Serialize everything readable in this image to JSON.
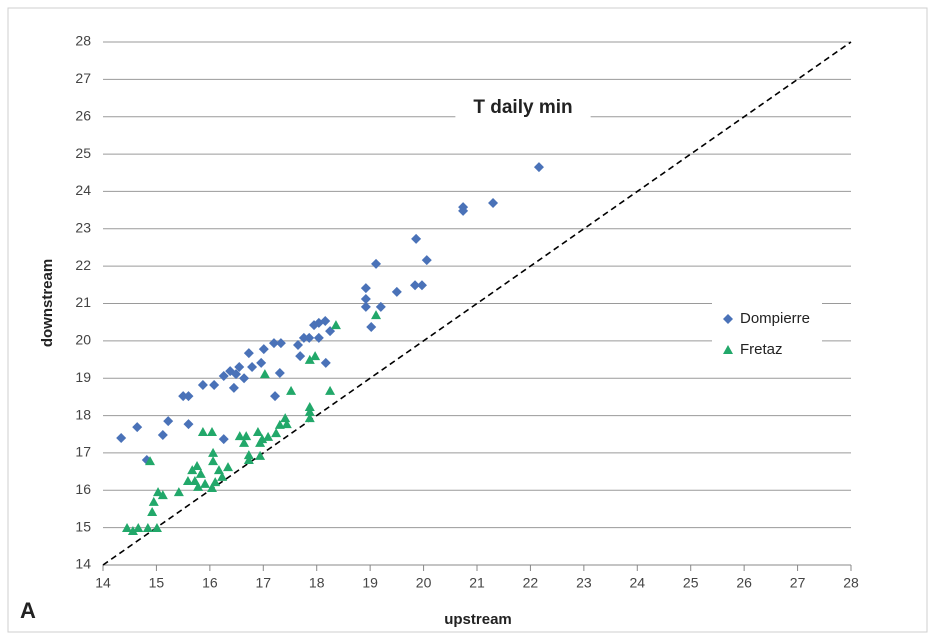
{
  "chart_data": {
    "type": "scatter",
    "title": "T daily min",
    "panel_label": "A",
    "x_label": "upstream",
    "y_label": "downstream",
    "xlim": [
      14,
      28
    ],
    "ylim": [
      14,
      28
    ],
    "xticks": [
      14,
      15,
      16,
      17,
      18,
      19,
      20,
      21,
      22,
      23,
      24,
      25,
      26,
      27,
      28
    ],
    "yticks": [
      14,
      15,
      16,
      17,
      18,
      19,
      20,
      21,
      22,
      23,
      24,
      25,
      26,
      27,
      28
    ],
    "grid": true,
    "identity_line": true,
    "legend": "right",
    "series": [
      {
        "name": "Dompierre",
        "color": "#4a72b8",
        "marker": "diamond",
        "x": [
          14.34,
          14.64,
          14.82,
          15.12,
          15.22,
          15.5,
          15.6,
          15.6,
          15.87,
          16.08,
          16.26,
          16.26,
          16.38,
          16.45,
          16.49,
          16.55,
          16.64,
          16.73,
          16.79,
          16.96,
          17.01,
          17.2,
          17.22,
          17.31,
          17.33,
          17.65,
          17.69,
          17.76,
          17.86,
          17.95,
          18.04,
          18.04,
          18.16,
          18.17,
          18.25,
          18.92,
          18.92,
          18.92,
          19.02,
          19.11,
          19.2,
          19.5,
          19.86,
          19.84,
          19.97,
          20.06,
          20.74,
          20.74,
          21.3,
          22.16
        ],
        "values": [
          17.4,
          17.69,
          16.81,
          17.48,
          17.85,
          18.52,
          18.52,
          17.77,
          18.82,
          18.82,
          17.37,
          19.06,
          19.19,
          18.74,
          19.11,
          19.3,
          19.0,
          19.67,
          19.3,
          19.41,
          19.78,
          19.94,
          18.52,
          19.14,
          19.94,
          19.89,
          19.59,
          20.08,
          20.08,
          20.42,
          20.08,
          20.48,
          20.53,
          19.41,
          20.26,
          21.41,
          21.12,
          20.91,
          20.37,
          22.06,
          20.91,
          21.31,
          22.73,
          21.49,
          21.49,
          22.16,
          23.58,
          23.48,
          23.69,
          24.65
        ]
      },
      {
        "name": "Fretaz",
        "color": "#22a86a",
        "marker": "triangle",
        "x": [
          14.45,
          14.56,
          14.66,
          14.84,
          14.88,
          14.92,
          14.95,
          15.01,
          15.03,
          15.12,
          15.42,
          15.59,
          15.67,
          15.72,
          15.76,
          15.78,
          15.83,
          15.87,
          15.91,
          16.04,
          16.04,
          16.06,
          16.06,
          16.1,
          16.17,
          16.23,
          16.34,
          16.56,
          16.64,
          16.68,
          16.73,
          16.73,
          16.9,
          16.94,
          16.94,
          16.98,
          17.03,
          17.09,
          17.24,
          17.31,
          17.41,
          17.44,
          17.52,
          17.87,
          17.87,
          17.87,
          17.87,
          17.97,
          18.25,
          18.36,
          19.11
        ],
        "values": [
          14.99,
          14.91,
          14.99,
          14.99,
          16.78,
          15.42,
          15.69,
          14.99,
          15.95,
          15.87,
          15.95,
          16.25,
          16.54,
          16.25,
          16.65,
          16.09,
          16.44,
          17.56,
          16.17,
          17.56,
          16.06,
          17.0,
          16.78,
          16.22,
          16.54,
          16.36,
          16.62,
          17.45,
          17.27,
          17.45,
          16.94,
          16.81,
          17.56,
          17.27,
          16.92,
          17.37,
          19.11,
          17.43,
          17.53,
          17.75,
          17.93,
          17.77,
          18.66,
          18.23,
          18.1,
          17.93,
          19.49,
          19.59,
          18.66,
          20.42,
          20.69
        ]
      }
    ]
  }
}
